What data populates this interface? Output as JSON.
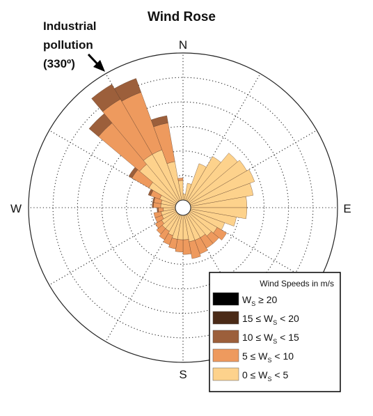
{
  "chart_data": {
    "type": "wind-rose",
    "title": "Wind Rose",
    "directions_labels": [
      "N",
      "E",
      "S",
      "W"
    ],
    "annotation": {
      "lines": [
        "Industrial",
        "pollution",
        "(330º)"
      ],
      "direction_deg": 330
    },
    "legend": {
      "title": "Wind Speeds in m/s",
      "placement": "bottom-right",
      "items": [
        {
          "pre": "W",
          "sub": "S",
          "post": " ≥ 20",
          "color": "#000000"
        },
        {
          "pre": "15 ≤ W",
          "sub": "S",
          "post": " < 20",
          "color": "#4a2a17"
        },
        {
          "pre": "10 ≤ W",
          "sub": "S",
          "post": " < 15",
          "color": "#9c5f3b"
        },
        {
          "pre": "5 ≤ W",
          "sub": "S",
          "post": " < 10",
          "color": "#ee9a5e"
        },
        {
          "pre": "0 ≤ W",
          "sub": "S",
          "post": " < 5",
          "color": "#fdd28c"
        }
      ]
    },
    "speed_bins": [
      "≥ 20",
      "15–20",
      "10–15",
      "5–10",
      "0–5"
    ],
    "sector_width_deg": 10,
    "ring_max": 6,
    "sectors": [
      {
        "dir": 5,
        "b": [
          0.25,
          0,
          0,
          0,
          0
        ]
      },
      {
        "dir": 15,
        "b": [
          0.7,
          0,
          0,
          0,
          0
        ]
      },
      {
        "dir": 25,
        "b": [
          1.6,
          0,
          0,
          0,
          0
        ]
      },
      {
        "dir": 35,
        "b": [
          2.1,
          0,
          0,
          0,
          0
        ]
      },
      {
        "dir": 45,
        "b": [
          2.6,
          0,
          0,
          0,
          0
        ]
      },
      {
        "dir": 55,
        "b": [
          2.7,
          0,
          0,
          0,
          0
        ]
      },
      {
        "dir": 65,
        "b": [
          2.8,
          0,
          0,
          0,
          0
        ]
      },
      {
        "dir": 75,
        "b": [
          2.6,
          0,
          0,
          0,
          0
        ]
      },
      {
        "dir": 85,
        "b": [
          2.3,
          0,
          0,
          0,
          0
        ]
      },
      {
        "dir": 95,
        "b": [
          2.3,
          0,
          0,
          0,
          0
        ]
      },
      {
        "dir": 105,
        "b": [
          1.9,
          0,
          0,
          0,
          0
        ]
      },
      {
        "dir": 115,
        "b": [
          1.5,
          0,
          0,
          0,
          0
        ]
      },
      {
        "dir": 125,
        "b": [
          1.3,
          0.45,
          0,
          0,
          0
        ]
      },
      {
        "dir": 135,
        "b": [
          1.2,
          0.4,
          0,
          0,
          0
        ]
      },
      {
        "dir": 145,
        "b": [
          1.1,
          0.5,
          0,
          0,
          0
        ]
      },
      {
        "dir": 155,
        "b": [
          1.1,
          0.6,
          0,
          0,
          0
        ]
      },
      {
        "dir": 165,
        "b": [
          1.1,
          0.7,
          0,
          0,
          0
        ]
      },
      {
        "dir": 175,
        "b": [
          1.0,
          0.6,
          0,
          0,
          0
        ]
      },
      {
        "dir": 185,
        "b": [
          1.0,
          0.5,
          0,
          0,
          0
        ]
      },
      {
        "dir": 195,
        "b": [
          1.0,
          0.4,
          0,
          0,
          0
        ]
      },
      {
        "dir": 205,
        "b": [
          0.9,
          0.4,
          0,
          0,
          0
        ]
      },
      {
        "dir": 215,
        "b": [
          0.8,
          0.4,
          0,
          0,
          0
        ]
      },
      {
        "dir": 225,
        "b": [
          0.8,
          0.3,
          0,
          0,
          0
        ]
      },
      {
        "dir": 235,
        "b": [
          0.7,
          0.3,
          0,
          0,
          0
        ]
      },
      {
        "dir": 245,
        "b": [
          0.6,
          0.3,
          0,
          0,
          0
        ]
      },
      {
        "dir": 255,
        "b": [
          0.6,
          0.3,
          0,
          0,
          0
        ]
      },
      {
        "dir": 265,
        "b": [
          0.5,
          0.2,
          0.05,
          0,
          0
        ]
      },
      {
        "dir": 275,
        "b": [
          0.6,
          0.3,
          0.05,
          0,
          0
        ]
      },
      {
        "dir": 285,
        "b": [
          0.6,
          0.3,
          0.05,
          0,
          0
        ]
      },
      {
        "dir": 295,
        "b": [
          0.7,
          0.4,
          0.1,
          0,
          0
        ]
      },
      {
        "dir": 305,
        "b": [
          1.3,
          0.8,
          0.15,
          0,
          0
        ]
      },
      {
        "dir": 315,
        "b": [
          2.0,
          2.2,
          0.5,
          0,
          0
        ]
      },
      {
        "dir": 325,
        "b": [
          2.2,
          2.6,
          0.7,
          0,
          0
        ]
      },
      {
        "dir": 335,
        "b": [
          2.2,
          2.5,
          0.6,
          0,
          0
        ]
      },
      {
        "dir": 345,
        "b": [
          1.6,
          1.6,
          0.3,
          0,
          0
        ]
      },
      {
        "dir": 355,
        "b": [
          0.8,
          0.1,
          0,
          0,
          0
        ]
      }
    ]
  }
}
